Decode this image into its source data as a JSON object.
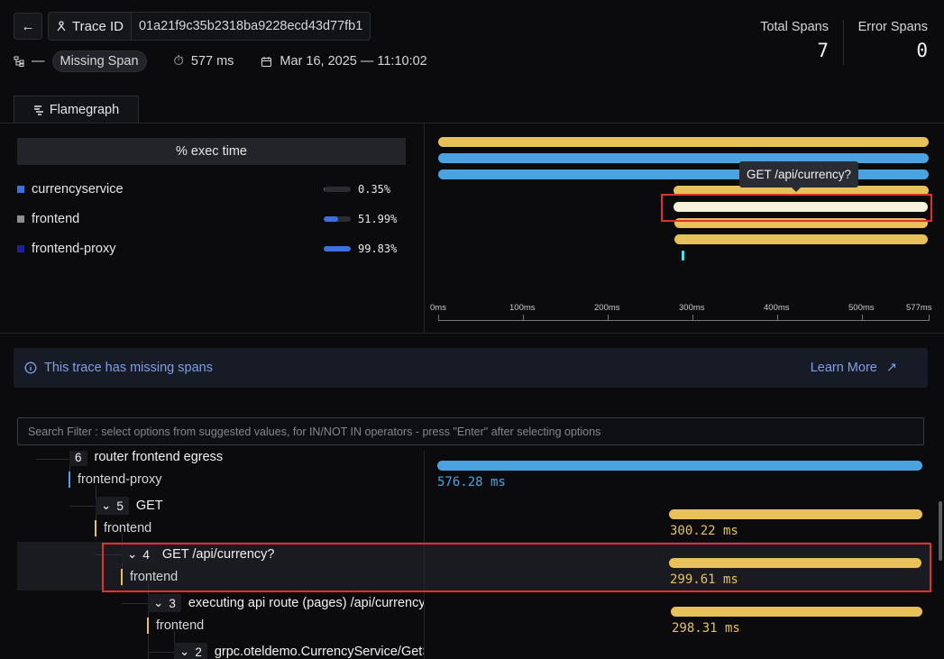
{
  "header": {
    "trace_id_label": "Trace ID",
    "trace_id_value": "01a21f9c35b2318ba9228ecd43d77fb1",
    "root_dash": "—",
    "root_span": "Missing Span",
    "duration": "577 ms",
    "date": "Mar 16, 2025",
    "date_sep": "—",
    "time": "11:10:02",
    "total_spans_label": "Total Spans",
    "total_spans_value": "7",
    "error_spans_label": "Error Spans",
    "error_spans_value": "0"
  },
  "tabs": [
    {
      "label": "Flamegraph"
    }
  ],
  "exec_panel": {
    "header": "% exec time",
    "services": [
      {
        "name": "currencyservice",
        "pct": "0.35%",
        "fraction": 0.0035,
        "color": "#3d6fe0"
      },
      {
        "name": "frontend",
        "pct": "51.99%",
        "fraction": 0.52,
        "color": "#8e8e93"
      },
      {
        "name": "frontend-proxy",
        "pct": "99.83%",
        "fraction": 0.998,
        "color": "#1b1f9c"
      }
    ]
  },
  "flamegraph": {
    "tooltip": "GET /api/currency?",
    "ticks": [
      "0ms",
      "100ms",
      "200ms",
      "300ms",
      "400ms",
      "500ms",
      "577ms"
    ]
  },
  "banner": {
    "text": "This trace has missing spans",
    "link": "Learn More"
  },
  "search": {
    "placeholder": "Search Filter : select options from suggested values, for IN/NOT IN operators - press \"Enter\" after selecting options"
  },
  "tree": {
    "nodes": [
      {
        "count": "6",
        "name": "router frontend egress",
        "service": "frontend-proxy",
        "duration": "576.28 ms"
      },
      {
        "count": "5",
        "name": "GET",
        "service": "frontend",
        "duration": "300.22 ms"
      },
      {
        "count": "4",
        "name": "GET /api/currency?",
        "service": "frontend",
        "duration": "299.61 ms"
      },
      {
        "count": "3",
        "name": "executing api route (pages) /api/currency",
        "service": "frontend",
        "duration": "298.31 ms"
      },
      {
        "count": "2",
        "name": "grpc.oteldemo.CurrencyService/GetSupportedCurrencies",
        "service": "",
        "duration": ""
      }
    ]
  },
  "colors": {
    "accent_yellow": "#e8c15a",
    "accent_blue": "#4aa3df",
    "highlight_red": "#e0302b",
    "selected_span": "#f5f1dc"
  }
}
